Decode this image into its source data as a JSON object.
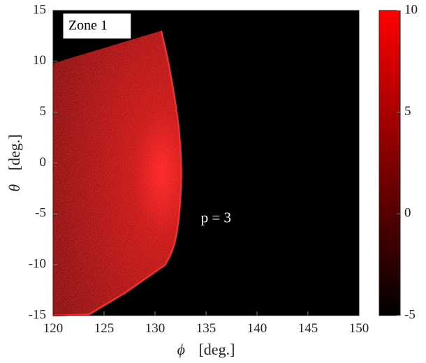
{
  "chart_data": {
    "type": "heatmap",
    "title": "",
    "xlabel": {
      "symbol": "ϕ",
      "unit": "[deg.]"
    },
    "ylabel": {
      "symbol": "θ",
      "unit": "[deg.]"
    },
    "xlim": [
      120,
      150
    ],
    "ylim": [
      -15,
      15
    ],
    "x_ticks": [
      120,
      125,
      130,
      135,
      140,
      145,
      150
    ],
    "y_ticks": [
      15,
      10,
      5,
      0,
      -5,
      -10,
      -15
    ],
    "grid": false,
    "background_color": "#000000",
    "colormap": {
      "low": "#000000",
      "high": "#ff0000"
    },
    "colorbar": {
      "range": [
        -5,
        10
      ],
      "ticks": [
        10,
        5,
        0,
        -5
      ]
    },
    "region_boundary": {
      "top_edge": [
        [
          120,
          9.8
        ],
        [
          130.6,
          13.0
        ]
      ],
      "right_edge": [
        [
          130.6,
          13.0
        ],
        [
          131.3,
          10.0
        ],
        [
          132.0,
          6.0
        ],
        [
          132.5,
          2.0
        ],
        [
          132.6,
          -2.0
        ],
        [
          132.3,
          -6.0
        ],
        [
          131.8,
          -8.5
        ],
        [
          131.0,
          -10.0
        ]
      ],
      "bottom_edge": [
        [
          131.0,
          -10.0
        ],
        [
          127.0,
          -12.8
        ],
        [
          123.5,
          -14.9
        ],
        [
          120,
          -15
        ]
      ]
    },
    "annotations": [
      {
        "text": "Zone 1",
        "x": 121.5,
        "y": 13.5,
        "boxed": true
      },
      {
        "text": "p = 3",
        "x": 134.5,
        "y": -5.5,
        "boxed": false
      }
    ]
  }
}
